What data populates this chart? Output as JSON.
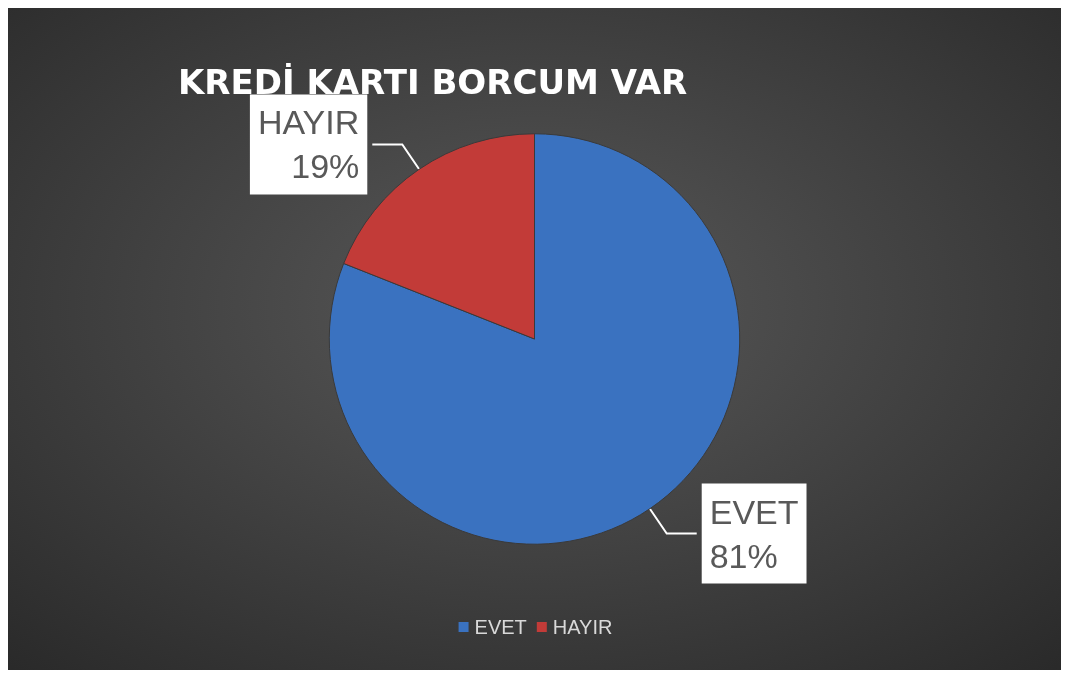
{
  "chart_data": {
    "type": "pie",
    "title": "KREDİ KARTI BORCUM VAR",
    "categories": [
      "EVET",
      "HAYIR"
    ],
    "values": [
      81,
      19
    ],
    "colors": [
      "#3a72c0",
      "#c23b38"
    ],
    "value_labels": [
      "81%",
      "19%"
    ],
    "legend": "bottom"
  }
}
